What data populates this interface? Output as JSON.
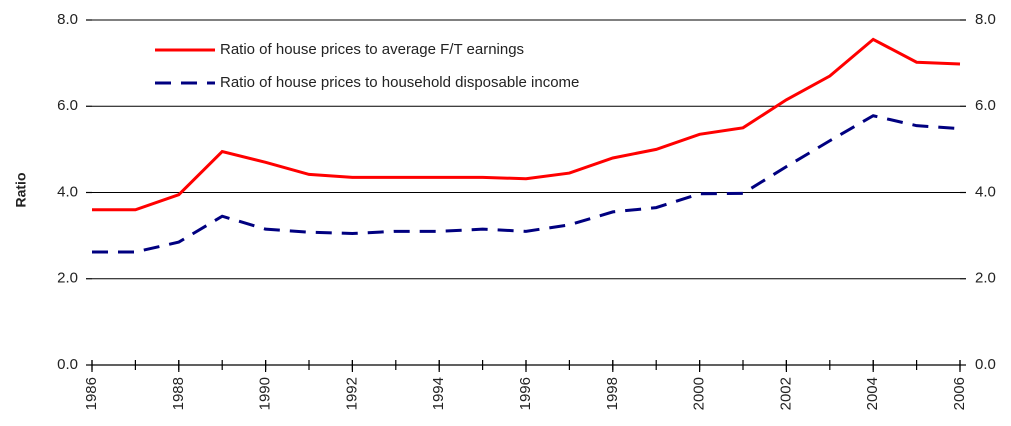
{
  "chart_data": {
    "type": "line",
    "y_label": "Ratio",
    "x": [
      1986,
      1987,
      1988,
      1989,
      1990,
      1991,
      1992,
      1993,
      1994,
      1995,
      1996,
      1997,
      1998,
      1999,
      2000,
      2001,
      2002,
      2003,
      2004,
      2005,
      2006
    ],
    "series": [
      {
        "name": "Ratio of house prices to average F/T earnings",
        "color": "#ff0000",
        "dash": false,
        "values": [
          3.6,
          3.6,
          3.95,
          4.95,
          4.7,
          4.42,
          4.35,
          4.35,
          4.35,
          4.35,
          4.32,
          4.45,
          4.8,
          5.0,
          5.35,
          5.5,
          6.15,
          6.7,
          7.55,
          7.02,
          6.98
        ]
      },
      {
        "name": "Ratio of house prices to household disposable income",
        "color": "#000080",
        "dash": true,
        "values": [
          2.62,
          2.62,
          2.85,
          3.45,
          3.15,
          3.08,
          3.05,
          3.1,
          3.1,
          3.15,
          3.1,
          3.25,
          3.55,
          3.65,
          3.97,
          3.98,
          4.6,
          5.2,
          5.78,
          5.55,
          5.48
        ]
      }
    ],
    "xlim": [
      1986,
      2006
    ],
    "xticks": [
      1986,
      1988,
      1990,
      1992,
      1994,
      1996,
      1998,
      2000,
      2002,
      2004,
      2006
    ],
    "ylim": [
      0,
      8
    ],
    "yticks": [
      {
        "value": 0,
        "label": "0.0"
      },
      {
        "value": 2,
        "label": "2.0"
      },
      {
        "value": 4,
        "label": "4.0"
      },
      {
        "value": 6,
        "label": "6.0"
      },
      {
        "value": 8,
        "label": "8.0"
      }
    ],
    "grid": true,
    "legend": "upper left"
  }
}
